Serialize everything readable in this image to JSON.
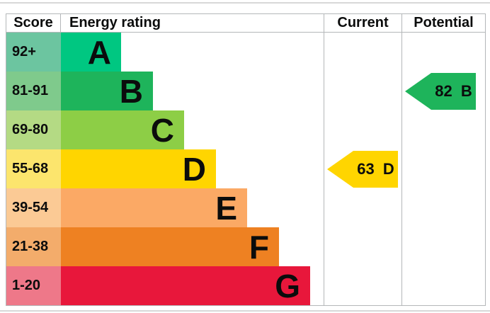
{
  "header": {
    "score": "Score",
    "energy_rating": "Energy rating",
    "current": "Current",
    "potential": "Potential"
  },
  "chart_data": {
    "type": "bar",
    "orientation": "horizontal",
    "title": "Energy efficiency rating chart (EPC)",
    "columns": [
      "Score",
      "Energy rating",
      "Current",
      "Potential"
    ],
    "bands": [
      {
        "score_range": "92+",
        "letter": "A",
        "color": "#00c781",
        "tint": "#6cc5a0"
      },
      {
        "score_range": "81-91",
        "letter": "B",
        "color": "#1eb45b",
        "tint": "#7fca8c"
      },
      {
        "score_range": "69-80",
        "letter": "C",
        "color": "#8dce46",
        "tint": "#b4da84"
      },
      {
        "score_range": "55-68",
        "letter": "D",
        "color": "#ffd500",
        "tint": "#fce56d"
      },
      {
        "score_range": "39-54",
        "letter": "E",
        "color": "#fba965",
        "tint": "#fbca95"
      },
      {
        "score_range": "21-38",
        "letter": "F",
        "color": "#ee8122",
        "tint": "#f3ac6b"
      },
      {
        "score_range": "1-20",
        "letter": "G",
        "color": "#e8173b",
        "tint": "#ee7889"
      }
    ],
    "current": {
      "score": 63,
      "letter": "D",
      "band_index": 3,
      "color": "#ffd500"
    },
    "potential": {
      "score": 82,
      "letter": "B",
      "band_index": 1,
      "color": "#1eb45b"
    }
  }
}
